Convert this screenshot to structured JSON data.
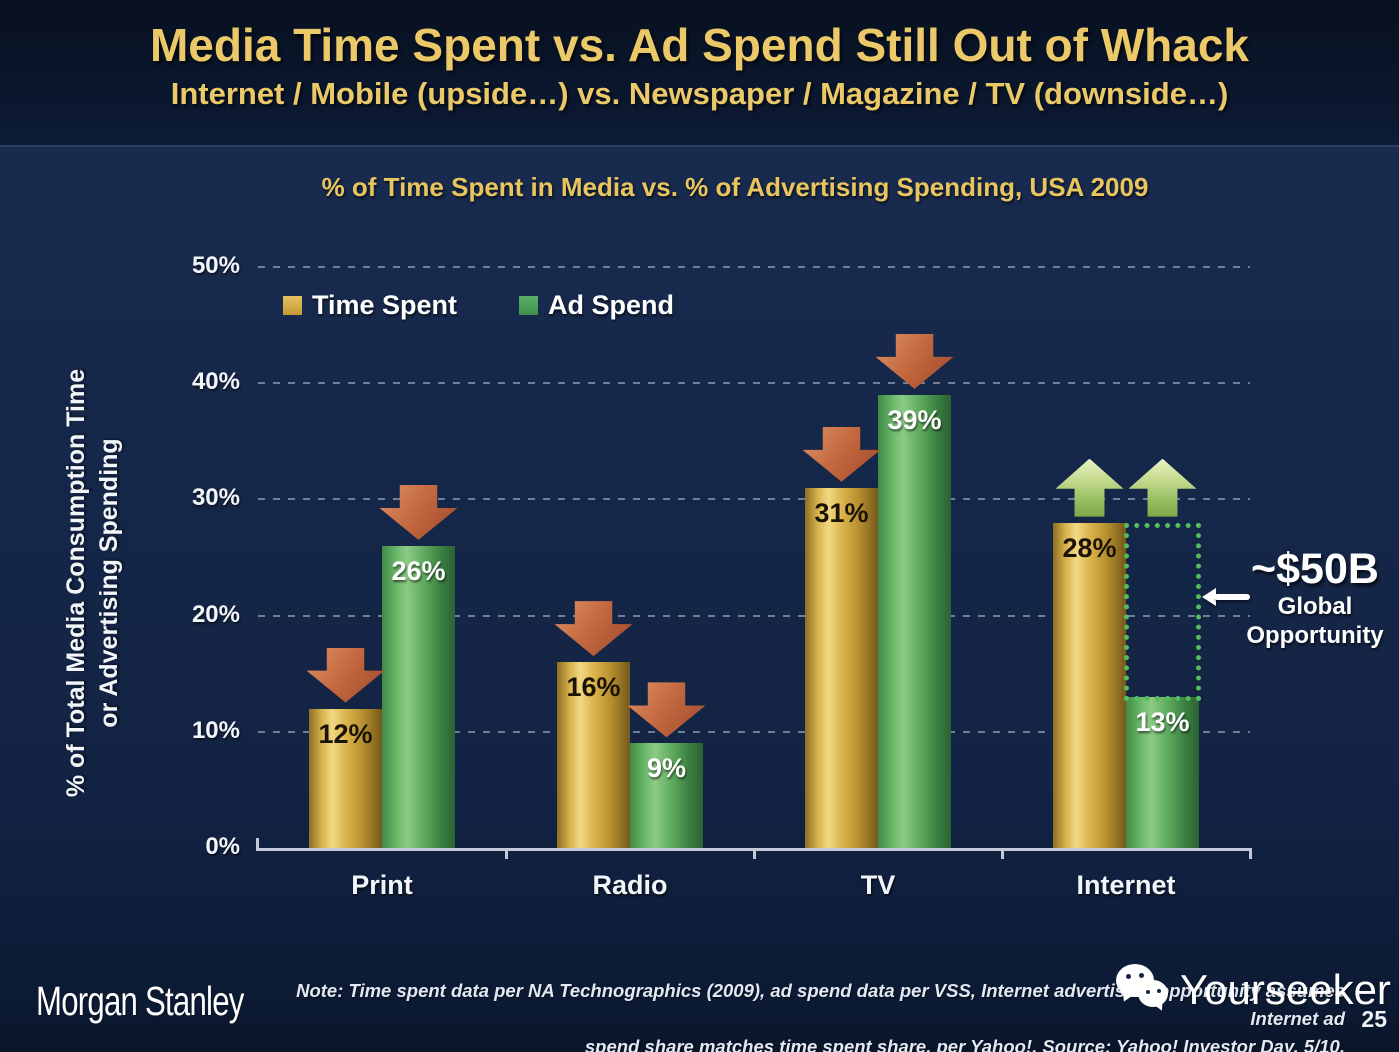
{
  "slide": {
    "title": "Media Time Spent vs. Ad Spend Still Out of Whack",
    "subtitle": "Internet / Mobile (upside…) vs. Newspaper / Magazine / TV (downside…)"
  },
  "chart_data": {
    "type": "bar",
    "title": "% of Time Spent in Media vs. % of Advertising Spending, USA 2009",
    "ylabel": "% of Total Media Consumption Time or Advertising Spending",
    "ylabel_lines": [
      "% of Total Media Consumption Time",
      "or Advertising Spending"
    ],
    "categories": [
      "Print",
      "Radio",
      "TV",
      "Internet"
    ],
    "series": [
      {
        "name": "Time Spent",
        "color_hex": "#d9ab42",
        "values": [
          12,
          16,
          31,
          28
        ]
      },
      {
        "name": "Ad Spend",
        "color_hex": "#4ea85a",
        "values": [
          26,
          9,
          39,
          13
        ]
      }
    ],
    "unit": "%",
    "ylim": [
      0,
      50
    ],
    "yticks": [
      "0%",
      "10%",
      "20%",
      "30%",
      "40%",
      "50%"
    ],
    "grid": "horizontal-dashed",
    "legend_position": "top-left-inside",
    "trend_arrows": [
      {
        "category": "Print",
        "series": 0,
        "dir": "down"
      },
      {
        "category": "Print",
        "series": 1,
        "dir": "down"
      },
      {
        "category": "Radio",
        "series": 0,
        "dir": "down"
      },
      {
        "category": "Radio",
        "series": 1,
        "dir": "down"
      },
      {
        "category": "TV",
        "series": 0,
        "dir": "down"
      },
      {
        "category": "TV",
        "series": 1,
        "dir": "down"
      },
      {
        "category": "Internet",
        "series": 0,
        "dir": "up",
        "at_value": 28
      },
      {
        "category": "Internet",
        "series": 1,
        "dir": "up",
        "at_value": 28
      }
    ],
    "gap_box": {
      "category": "Internet",
      "series": 1,
      "from_value": 13,
      "to_value": 28,
      "style": "green-dotted"
    },
    "annotation": {
      "headline": "~$50B",
      "line2": "Global",
      "line3": "Opportunity"
    }
  },
  "footer": {
    "brand": "Morgan Stanley",
    "note_line1": "Note: Time spent data per NA Technographics (2009), ad spend data per VSS, Internet advertising opportunity assumes Internet ad",
    "note_line2": "spend share matches time spent share, per Yahoo!. Source: Yahoo! Investor Day, 5/10.",
    "page_number": "25",
    "watermark": "Yourseeker"
  },
  "colors": {
    "accent_gold": "#e9c763",
    "bar_gold": "#d9ab42",
    "bar_green": "#4ea85a",
    "arrow_down": "#bb5c36",
    "arrow_up": "#a9cc72",
    "gap_dotted": "#54bd5e",
    "background": "#13254a"
  }
}
